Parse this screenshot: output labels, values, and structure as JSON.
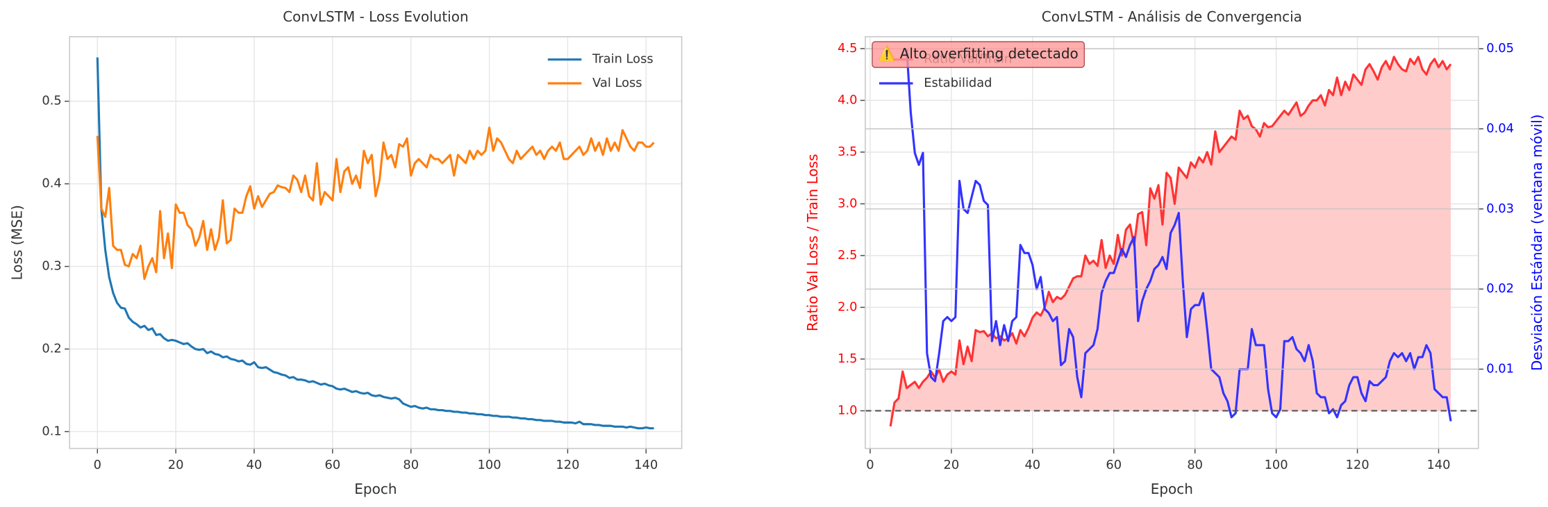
{
  "chart_data": [
    {
      "type": "line",
      "title": "ConvLSTM - Loss Evolution",
      "xlabel": "Epoch",
      "ylabel": "Loss (MSE)",
      "x": [
        0,
        1,
        2,
        3,
        4,
        5,
        6,
        7,
        8,
        9,
        10,
        11,
        12,
        13,
        14,
        15,
        16,
        17,
        18,
        19,
        20,
        21,
        22,
        23,
        24,
        25,
        26,
        27,
        28,
        29,
        30,
        31,
        32,
        33,
        34,
        35,
        36,
        37,
        38,
        39,
        40,
        41,
        42,
        43,
        44,
        45,
        46,
        47,
        48,
        49,
        50,
        51,
        52,
        53,
        54,
        55,
        56,
        57,
        58,
        59,
        60,
        61,
        62,
        63,
        64,
        65,
        66,
        67,
        68,
        69,
        70,
        71,
        72,
        73,
        74,
        75,
        76,
        77,
        78,
        79,
        80,
        81,
        82,
        83,
        84,
        85,
        86,
        87,
        88,
        89,
        90,
        91,
        92,
        93,
        94,
        95,
        96,
        97,
        98,
        99,
        100,
        101,
        102,
        103,
        104,
        105,
        106,
        107,
        108,
        109,
        110,
        111,
        112,
        113,
        114,
        115,
        116,
        117,
        118,
        119,
        120,
        121,
        122,
        123,
        124,
        125,
        126,
        127,
        128,
        129,
        130,
        131,
        132,
        133,
        134,
        135,
        136,
        137,
        138,
        139,
        140,
        141,
        142
      ],
      "series": [
        {
          "name": "Train Loss",
          "color": "#1f77b4",
          "values": [
            0.553,
            0.37,
            0.32,
            0.287,
            0.268,
            0.256,
            0.25,
            0.249,
            0.238,
            0.233,
            0.23,
            0.226,
            0.228,
            0.223,
            0.225,
            0.217,
            0.218,
            0.213,
            0.21,
            0.211,
            0.21,
            0.208,
            0.206,
            0.207,
            0.203,
            0.2,
            0.199,
            0.2,
            0.195,
            0.197,
            0.194,
            0.193,
            0.19,
            0.191,
            0.188,
            0.187,
            0.185,
            0.186,
            0.182,
            0.181,
            0.184,
            0.178,
            0.177,
            0.178,
            0.175,
            0.172,
            0.171,
            0.169,
            0.168,
            0.165,
            0.166,
            0.163,
            0.163,
            0.162,
            0.16,
            0.161,
            0.159,
            0.157,
            0.158,
            0.156,
            0.155,
            0.152,
            0.151,
            0.152,
            0.15,
            0.148,
            0.149,
            0.147,
            0.146,
            0.147,
            0.144,
            0.143,
            0.144,
            0.142,
            0.141,
            0.14,
            0.141,
            0.139,
            0.134,
            0.132,
            0.13,
            0.131,
            0.129,
            0.128,
            0.129,
            0.127,
            0.127,
            0.126,
            0.126,
            0.125,
            0.125,
            0.124,
            0.124,
            0.123,
            0.123,
            0.122,
            0.122,
            0.121,
            0.121,
            0.12,
            0.12,
            0.119,
            0.119,
            0.118,
            0.118,
            0.118,
            0.117,
            0.117,
            0.116,
            0.116,
            0.115,
            0.115,
            0.114,
            0.114,
            0.113,
            0.113,
            0.113,
            0.112,
            0.112,
            0.111,
            0.111,
            0.111,
            0.11,
            0.112,
            0.109,
            0.109,
            0.109,
            0.108,
            0.108,
            0.107,
            0.107,
            0.107,
            0.106,
            0.106,
            0.106,
            0.105,
            0.106,
            0.105,
            0.104,
            0.104,
            0.105,
            0.104,
            0.104
          ]
        },
        {
          "name": "Val Loss",
          "color": "#ff7f0e",
          "values": [
            0.458,
            0.37,
            0.36,
            0.395,
            0.325,
            0.32,
            0.32,
            0.302,
            0.3,
            0.315,
            0.31,
            0.325,
            0.285,
            0.3,
            0.31,
            0.293,
            0.367,
            0.31,
            0.34,
            0.298,
            0.375,
            0.365,
            0.365,
            0.35,
            0.345,
            0.325,
            0.335,
            0.355,
            0.32,
            0.345,
            0.32,
            0.335,
            0.38,
            0.328,
            0.332,
            0.37,
            0.365,
            0.365,
            0.385,
            0.397,
            0.37,
            0.385,
            0.372,
            0.38,
            0.388,
            0.39,
            0.398,
            0.396,
            0.395,
            0.39,
            0.41,
            0.405,
            0.39,
            0.41,
            0.385,
            0.38,
            0.425,
            0.375,
            0.39,
            0.385,
            0.38,
            0.43,
            0.39,
            0.415,
            0.42,
            0.4,
            0.41,
            0.395,
            0.44,
            0.425,
            0.435,
            0.385,
            0.405,
            0.45,
            0.43,
            0.435,
            0.42,
            0.448,
            0.445,
            0.455,
            0.41,
            0.425,
            0.43,
            0.425,
            0.42,
            0.435,
            0.43,
            0.43,
            0.425,
            0.43,
            0.435,
            0.41,
            0.435,
            0.43,
            0.425,
            0.44,
            0.43,
            0.44,
            0.435,
            0.44,
            0.468,
            0.44,
            0.455,
            0.45,
            0.44,
            0.43,
            0.425,
            0.44,
            0.43,
            0.435,
            0.44,
            0.445,
            0.435,
            0.44,
            0.43,
            0.44,
            0.445,
            0.44,
            0.45,
            0.43,
            0.43,
            0.435,
            0.44,
            0.445,
            0.435,
            0.44,
            0.455,
            0.44,
            0.45,
            0.435,
            0.455,
            0.44,
            0.45,
            0.44,
            0.465,
            0.455,
            0.445,
            0.44,
            0.45,
            0.45,
            0.445,
            0.445,
            0.45
          ]
        }
      ],
      "xlim": [
        -7.1,
        149.1
      ],
      "ylim": [
        0.0796,
        0.5781
      ],
      "xticks": [
        0,
        20,
        40,
        60,
        80,
        100,
        120,
        140
      ],
      "yticks": [
        0.1,
        0.2,
        0.3,
        0.4,
        0.5
      ],
      "grid": true,
      "legend": "upper right"
    },
    {
      "type": "line",
      "title": "ConvLSTM - Análisis de Convergencia",
      "xlabel": "Epoch",
      "ylabel": "Ratio Val Loss / Train Loss",
      "ylabel_color": "red",
      "y2label": "Desviación Estándar (ventana móvil)",
      "y2label_color": "blue",
      "x": [
        5,
        6,
        7,
        8,
        9,
        10,
        11,
        12,
        13,
        14,
        15,
        16,
        17,
        18,
        19,
        20,
        21,
        22,
        23,
        24,
        25,
        26,
        27,
        28,
        29,
        30,
        31,
        32,
        33,
        34,
        35,
        36,
        37,
        38,
        39,
        40,
        41,
        42,
        43,
        44,
        45,
        46,
        47,
        48,
        49,
        50,
        51,
        52,
        53,
        54,
        55,
        56,
        57,
        58,
        59,
        60,
        61,
        62,
        63,
        64,
        65,
        66,
        67,
        68,
        69,
        70,
        71,
        72,
        73,
        74,
        75,
        76,
        77,
        78,
        79,
        80,
        81,
        82,
        83,
        84,
        85,
        86,
        87,
        88,
        89,
        90,
        91,
        92,
        93,
        94,
        95,
        96,
        97,
        98,
        99,
        100,
        101,
        102,
        103,
        104,
        105,
        106,
        107,
        108,
        109,
        110,
        111,
        112,
        113,
        114,
        115,
        116,
        117,
        118,
        119,
        120,
        121,
        122,
        123,
        124,
        125,
        126,
        127,
        128,
        129,
        130,
        131,
        132,
        133,
        134,
        135,
        136,
        137,
        138,
        139,
        140,
        141,
        142,
        143
      ],
      "series": [
        {
          "name": "Ratio Val/Train",
          "color": "#ff3333",
          "fill_color": "#ffcccc",
          "values": [
            0.85,
            1.08,
            1.12,
            1.38,
            1.22,
            1.25,
            1.28,
            1.22,
            1.28,
            1.32,
            1.38,
            1.32,
            1.4,
            1.28,
            1.35,
            1.38,
            1.35,
            1.68,
            1.45,
            1.62,
            1.48,
            1.78,
            1.76,
            1.77,
            1.72,
            1.75,
            1.7,
            1.72,
            1.68,
            1.7,
            1.75,
            1.65,
            1.78,
            1.72,
            1.8,
            1.9,
            1.95,
            1.92,
            2.0,
            2.15,
            2.05,
            2.1,
            2.08,
            2.12,
            2.2,
            2.28,
            2.3,
            2.3,
            2.5,
            2.42,
            2.45,
            2.4,
            2.65,
            2.38,
            2.5,
            2.42,
            2.7,
            2.5,
            2.75,
            2.8,
            2.6,
            2.9,
            2.92,
            2.6,
            3.15,
            3.05,
            3.18,
            2.8,
            3.3,
            3.25,
            3.0,
            3.35,
            3.3,
            3.25,
            3.4,
            3.35,
            3.45,
            3.4,
            3.5,
            3.38,
            3.7,
            3.5,
            3.55,
            3.6,
            3.65,
            3.62,
            3.9,
            3.82,
            3.85,
            3.75,
            3.72,
            3.65,
            3.78,
            3.74,
            3.75,
            3.8,
            3.85,
            3.9,
            3.86,
            3.92,
            3.98,
            3.85,
            3.88,
            3.95,
            4.0,
            4.0,
            4.05,
            3.95,
            4.1,
            4.05,
            4.22,
            4.05,
            4.18,
            4.1,
            4.25,
            4.2,
            4.15,
            4.3,
            4.35,
            4.28,
            4.2,
            4.32,
            4.38,
            4.3,
            4.42,
            4.35,
            4.3,
            4.28,
            4.4,
            4.35,
            4.42,
            4.3,
            4.25,
            4.35,
            4.4,
            4.32,
            4.38,
            4.3,
            4.35
          ]
        },
        {
          "name": "Estabilidad",
          "color": "#3333ff",
          "axis": "y2",
          "values": [
            null,
            null,
            null,
            null,
            0.05,
            0.042,
            0.037,
            0.0355,
            0.037,
            0.012,
            0.009,
            0.0085,
            0.012,
            0.016,
            0.0165,
            0.016,
            0.0165,
            0.0335,
            0.03,
            0.0295,
            0.0315,
            0.0335,
            0.033,
            0.031,
            0.0305,
            0.0135,
            0.016,
            0.013,
            0.0155,
            0.0135,
            0.016,
            0.0165,
            0.0255,
            0.0245,
            0.0245,
            0.023,
            0.02,
            0.0215,
            0.0175,
            0.017,
            0.016,
            0.0165,
            0.0105,
            0.011,
            0.015,
            0.014,
            0.009,
            0.0065,
            0.012,
            0.0125,
            0.013,
            0.015,
            0.0195,
            0.021,
            0.022,
            0.022,
            0.0235,
            0.025,
            0.024,
            0.0255,
            0.0265,
            0.016,
            0.0185,
            0.02,
            0.021,
            0.0225,
            0.023,
            0.024,
            0.0225,
            0.027,
            0.028,
            0.0295,
            0.021,
            0.014,
            0.0175,
            0.018,
            0.018,
            0.0195,
            0.015,
            0.01,
            0.0095,
            0.009,
            0.007,
            0.006,
            0.004,
            0.0045,
            0.01,
            0.01,
            0.01,
            0.015,
            0.013,
            0.013,
            0.013,
            0.0075,
            0.0045,
            0.004,
            0.005,
            0.0135,
            0.0135,
            0.014,
            0.0125,
            0.012,
            0.011,
            0.013,
            0.011,
            0.007,
            0.0065,
            0.0065,
            0.0045,
            0.005,
            0.004,
            0.0055,
            0.006,
            0.008,
            0.009,
            0.009,
            0.007,
            0.006,
            0.0085,
            0.008,
            0.008,
            0.0085,
            0.009,
            0.011,
            0.012,
            0.0115,
            0.012,
            0.011,
            0.012,
            0.01,
            0.0115,
            0.0115,
            0.013,
            0.012,
            0.0075,
            0.007,
            0.0065,
            0.0065,
            0.0035
          ]
        }
      ],
      "hline": 1.0,
      "annotation": "⚠️ Alto overfitting detectado",
      "xlim": [
        -1.2,
        149.8
      ],
      "ylim": [
        0.636,
        4.615
      ],
      "xticks": [
        0,
        20,
        40,
        60,
        80,
        100,
        120,
        140
      ],
      "yticks": [
        {
          "value": 1,
          "label": "1.0"
        },
        1.5,
        {
          "value": 2,
          "label": "2.0"
        },
        2.5,
        {
          "value": 3,
          "label": "3.0"
        },
        3.5,
        {
          "value": 4,
          "label": "4.0"
        },
        4.5
      ],
      "y2lim": [
        0.0001,
        0.0515
      ],
      "y2ticks": [
        0.01,
        0.02,
        0.03,
        0.04,
        0.05
      ],
      "grid": true,
      "legend": "upper left"
    }
  ]
}
